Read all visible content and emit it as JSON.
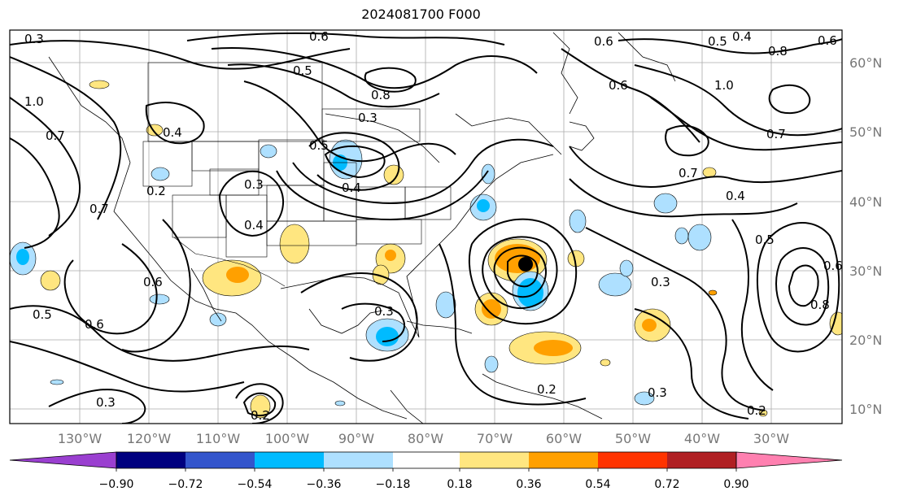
{
  "title": "2024081700 F000",
  "map": {
    "lat_labels": [
      "60°N",
      "50°N",
      "40°N",
      "30°N",
      "20°N",
      "10°N"
    ],
    "lon_labels": [
      "130°W",
      "120°W",
      "110°W",
      "100°W",
      "90°W",
      "80°W",
      "70°W",
      "60°W",
      "50°W",
      "40°W",
      "30°W"
    ],
    "contour_labels": [
      "0.3",
      "0.6",
      "0.6",
      "0.5",
      "0.4",
      "0.6",
      "0.8",
      "0.6",
      "1.0",
      "0.7",
      "0.4",
      "0.3",
      "0.2",
      "0.4",
      "0.3",
      "0.4",
      "0.7",
      "0.6",
      "0.5",
      "0.3",
      "0.2",
      "0.3",
      "0.2",
      "0.6",
      "0.3",
      "0.3",
      "0.2",
      "0.4",
      "0.5",
      "0.6",
      "0.7",
      "0.8",
      "0.5",
      "0.8",
      "1.0",
      "0.7",
      "0.5"
    ],
    "storm_marker": "tropical-cyclone-center"
  },
  "colorbar": {
    "ticks": [
      "−0.90",
      "−0.72",
      "−0.54",
      "−0.36",
      "−0.18",
      "0.18",
      "0.36",
      "0.54",
      "0.72",
      "0.90"
    ],
    "colors": [
      "#9a3fd0",
      "#00007f",
      "#3355cc",
      "#00bbff",
      "#aee0ff",
      "#ffffff",
      "#ffe680",
      "#ffa000",
      "#ff3300",
      "#b01f23",
      "#ff80b0"
    ]
  }
}
